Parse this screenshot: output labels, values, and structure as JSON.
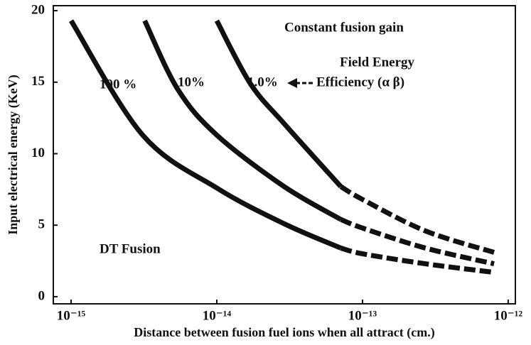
{
  "chart_data": {
    "type": "line",
    "x_label": "Distance between fusion fuel ions when all attract (cm.)",
    "y_label": "Input electrical energy (KeV)",
    "xscale": "log",
    "xlim": [
      7.55e-16,
      1.12e-12
    ],
    "ylim": [
      -0.5,
      20.35
    ],
    "xticks": [
      {
        "value": 1e-15,
        "label": "10⁻¹⁵"
      },
      {
        "value": 1e-14,
        "label": "10⁻¹⁴"
      },
      {
        "value": 1e-13,
        "label": "10⁻¹³"
      },
      {
        "value": 1e-12,
        "label": "10⁻¹²"
      }
    ],
    "yticks": [
      0,
      5,
      10,
      15,
      20
    ],
    "color": "#111111",
    "series": [
      {
        "name": "100 %",
        "segments": [
          {
            "style": "solid",
            "x": [
              1e-15,
              3.1e-15,
              1e-14,
              2.9e-14,
              7.1e-14
            ],
            "values": [
              19.3,
              11.3,
              7.6,
              5.1,
              3.4
            ]
          },
          {
            "style": "dashed",
            "x": [
              7.1e-14,
              1e-13,
              2.7e-13,
              8e-13
            ],
            "values": [
              3.4,
              3.0,
              2.3,
              1.7
            ]
          }
        ]
      },
      {
        "name": "10%",
        "segments": [
          {
            "style": "solid",
            "x": [
              3.2e-15,
              5.4e-15,
              1e-14,
              2.9e-14,
              7.1e-14
            ],
            "values": [
              19.3,
              14.5,
              11.3,
              7.7,
              5.4
            ]
          },
          {
            "style": "dashed",
            "x": [
              7.1e-14,
              1e-13,
              2.7e-13,
              8e-13
            ],
            "values": [
              5.4,
              4.8,
              3.4,
              2.3
            ]
          }
        ]
      },
      {
        "name": "1.0%",
        "segments": [
          {
            "style": "solid",
            "x": [
              1e-14,
              1.7e-14,
              2.9e-14,
              7.1e-14
            ],
            "values": [
              19.3,
              14.9,
              12.1,
              7.7
            ]
          },
          {
            "style": "dashed",
            "x": [
              7.1e-14,
              1e-13,
              2.7e-13,
              8e-13
            ],
            "values": [
              7.7,
              6.8,
              4.6,
              3.1
            ]
          }
        ]
      }
    ],
    "annotations": [
      "Constant fusion gain",
      "Field Energy",
      "Efficiency (α β)",
      "DT Fusion"
    ]
  }
}
